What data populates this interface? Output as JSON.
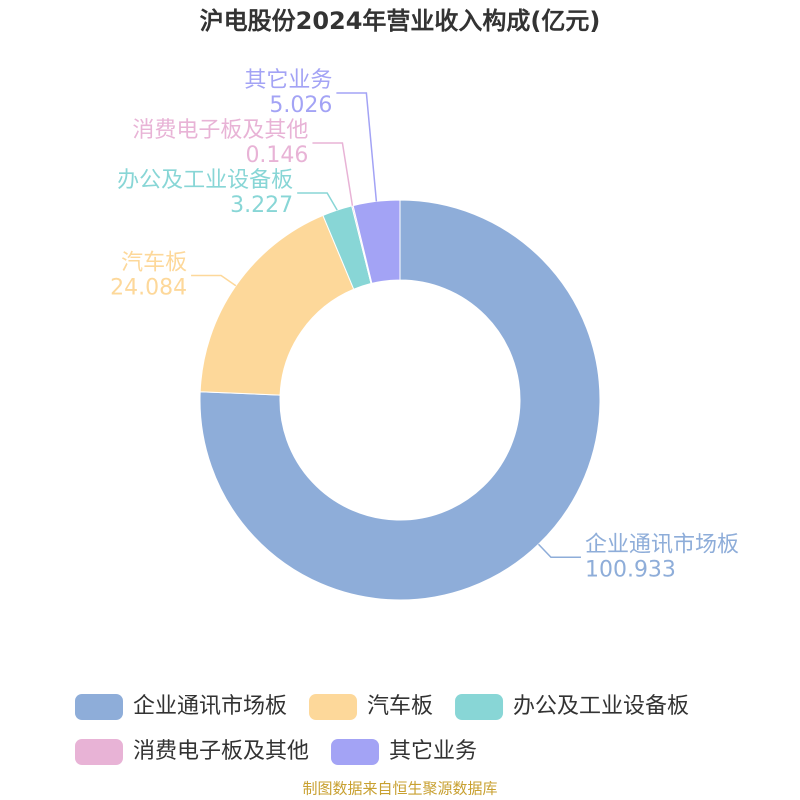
{
  "chart_data": {
    "type": "donut",
    "title": "沪电股份2024年营业收入构成(亿元)",
    "categories": [
      "企业通讯市场板",
      "汽车板",
      "办公及工业设备板",
      "消费电子板及其他",
      "其它业务"
    ],
    "values": [
      100.933,
      24.084,
      3.227,
      0.146,
      5.026
    ],
    "colors": [
      "#8eadd9",
      "#fdd89a",
      "#88d6d6",
      "#e8b3d6",
      "#a3a3f5"
    ],
    "source": "制图数据来自恒生聚源数据库"
  }
}
